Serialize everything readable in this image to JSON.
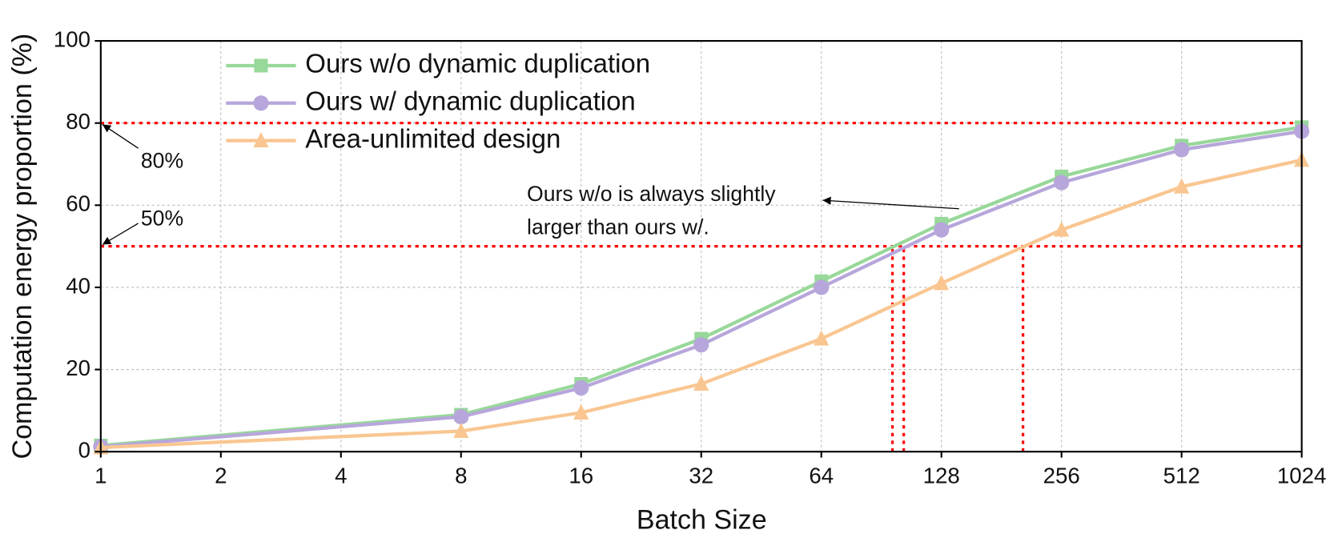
{
  "chart_data": {
    "type": "line",
    "x_label": "Batch Size",
    "y_label": "Computation energy proportion (%)",
    "x": [
      1,
      8,
      16,
      32,
      64,
      128,
      256,
      512,
      1024
    ],
    "x_scale": "log2",
    "xlim": [
      1,
      1024
    ],
    "xticks": [
      1,
      2,
      4,
      8,
      16,
      32,
      64,
      128,
      256,
      512,
      1024
    ],
    "ylim": [
      0,
      100
    ],
    "yticks": [
      0,
      20,
      40,
      60,
      80,
      100
    ],
    "grid": true,
    "legend": "upper left",
    "series": [
      {
        "name": "Ours w/o dynamic duplication",
        "color": "#98d89a",
        "marker": "square",
        "values": [
          1.5,
          9,
          16.5,
          27.5,
          41.5,
          55.5,
          67,
          74.5,
          79
        ]
      },
      {
        "name": "Ours w/ dynamic duplication",
        "color": "#b7a6db",
        "marker": "circle",
        "values": [
          1.2,
          8.5,
          15.5,
          26,
          40,
          54,
          65.5,
          73.5,
          78
        ]
      },
      {
        "name": "Area-unlimited design",
        "color": "#f9c691",
        "marker": "triangle",
        "values": [
          1,
          5,
          9.5,
          16.5,
          27.5,
          41,
          54,
          64.5,
          71
        ]
      }
    ],
    "reference_lines": {
      "color": "#ff0000",
      "horizontal": [
        80,
        50
      ],
      "vertical": [
        96.5,
        103,
        205
      ],
      "vertical_top": 50
    },
    "annotations": [
      "80%",
      "50%",
      "Ours w/o is always slightly",
      "larger than ours w/."
    ]
  }
}
